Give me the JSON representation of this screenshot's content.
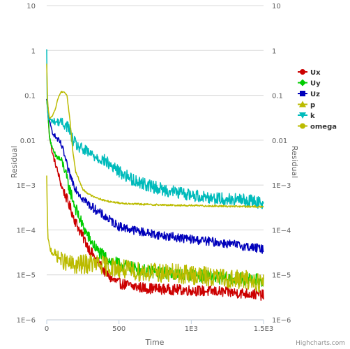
{
  "chart_data": {
    "type": "line",
    "title": "",
    "xlabel": "Time",
    "ylabel": "Residual",
    "ylabel_right": "Residual",
    "y_scale": "log",
    "xlim": [
      0,
      1500
    ],
    "ylim": [
      1e-06,
      10
    ],
    "x_ticks": [
      0,
      500,
      1000,
      1500
    ],
    "x_tick_labels": [
      "0",
      "500",
      "1E3",
      "1.5E3"
    ],
    "y_ticks": [
      10,
      1,
      0.1,
      0.01,
      0.001,
      0.0001,
      1e-05,
      1e-06
    ],
    "y_tick_labels": [
      "10",
      "1",
      "0.1",
      "0.01",
      "1E−3",
      "1E−4",
      "1E−5",
      "1E−6"
    ],
    "grid": true,
    "legend_position": "right",
    "credit": "Highcharts.com",
    "series": [
      {
        "name": "Ux",
        "color": "#cc0000",
        "marker": "circle",
        "noise": 0.12,
        "x": [
          0,
          5,
          10,
          20,
          40,
          60,
          80,
          100,
          150,
          200,
          250,
          300,
          350,
          400,
          450,
          500,
          600,
          700,
          800,
          1000,
          1200,
          1400,
          1500
        ],
        "values": [
          0.08,
          0.06,
          0.03,
          0.012,
          0.005,
          0.003,
          0.0018,
          0.001,
          0.0004,
          0.00015,
          7e-05,
          3.5e-05,
          2e-05,
          1.2e-05,
          8e-06,
          6.5e-06,
          5.5e-06,
          5e-06,
          4.8e-06,
          4.5e-06,
          4.2e-06,
          3.8e-06,
          3.5e-06
        ]
      },
      {
        "name": "Uy",
        "color": "#00cc00",
        "marker": "diamond",
        "noise": 0.14,
        "x": [
          0,
          5,
          10,
          20,
          40,
          60,
          80,
          100,
          120,
          150,
          200,
          250,
          300,
          350,
          400,
          450,
          500,
          600,
          700,
          800,
          1000,
          1200,
          1400,
          1500
        ],
        "values": [
          0.08,
          0.06,
          0.03,
          0.012,
          0.006,
          0.0045,
          0.004,
          0.0035,
          0.0025,
          0.001,
          0.0003,
          0.00012,
          6e-05,
          3.5e-05,
          2.5e-05,
          2e-05,
          1.7e-05,
          1.4e-05,
          1.2e-05,
          1.1e-05,
          1e-05,
          8.5e-06,
          8e-06,
          7.5e-06
        ]
      },
      {
        "name": "Uz",
        "color": "#0000bb",
        "marker": "square",
        "noise": 0.1,
        "x": [
          0,
          5,
          10,
          20,
          40,
          60,
          80,
          100,
          120,
          150,
          200,
          250,
          300,
          400,
          500,
          600,
          700,
          800,
          1000,
          1200,
          1400,
          1500
        ],
        "values": [
          0.08,
          0.07,
          0.05,
          0.025,
          0.015,
          0.012,
          0.01,
          0.008,
          0.005,
          0.002,
          0.00085,
          0.0005,
          0.00035,
          0.0002,
          0.00012,
          0.0001,
          8.5e-05,
          7.5e-05,
          6.2e-05,
          5.2e-05,
          4.2e-05,
          3.7e-05
        ]
      },
      {
        "name": "p",
        "color": "#bbbb00",
        "marker": "triangle",
        "noise": 0.22,
        "x": [
          0,
          3,
          6,
          10,
          20,
          40,
          60,
          100,
          150,
          200,
          250,
          300,
          400,
          500,
          600,
          800,
          1000,
          1200,
          1400,
          1500
        ],
        "values": [
          0.0015,
          0.0004,
          0.00012,
          6e-05,
          4e-05,
          3.2e-05,
          2.8e-05,
          2.2e-05,
          1.7e-05,
          1.6e-05,
          1.7e-05,
          1.8e-05,
          1.6e-05,
          1.4e-05,
          1.2e-05,
          1.1e-05,
          1e-05,
          8.5e-06,
          7.5e-06,
          6.5e-06
        ]
      },
      {
        "name": "k",
        "color": "#00bbbb",
        "marker": "triangle-down",
        "noise": 0.14,
        "x": [
          0,
          3,
          6,
          10,
          20,
          40,
          60,
          100,
          150,
          170,
          200,
          250,
          300,
          400,
          500,
          600,
          700,
          800,
          1000,
          1200,
          1400,
          1500
        ],
        "values": [
          1,
          0.1,
          0.05,
          0.03,
          0.028,
          0.027,
          0.026,
          0.025,
          0.02,
          0.012,
          0.008,
          0.006,
          0.005,
          0.0035,
          0.002,
          0.0013,
          0.001,
          0.0008,
          0.0006,
          0.0005,
          0.00045,
          0.0004
        ]
      },
      {
        "name": "omega",
        "color": "#bbbb00",
        "marker": "circle",
        "noise": 0.02,
        "x": [
          0,
          3,
          6,
          10,
          20,
          40,
          60,
          80,
          100,
          120,
          140,
          160,
          180,
          200,
          250,
          300,
          400,
          500,
          600,
          800,
          1000,
          1200,
          1400,
          1500
        ],
        "values": [
          0.5,
          0.2,
          0.08,
          0.05,
          0.03,
          0.035,
          0.05,
          0.09,
          0.12,
          0.12,
          0.1,
          0.03,
          0.006,
          0.002,
          0.0008,
          0.0006,
          0.00045,
          0.0004,
          0.00038,
          0.00036,
          0.00035,
          0.00034,
          0.00033,
          0.00033
        ]
      }
    ]
  }
}
